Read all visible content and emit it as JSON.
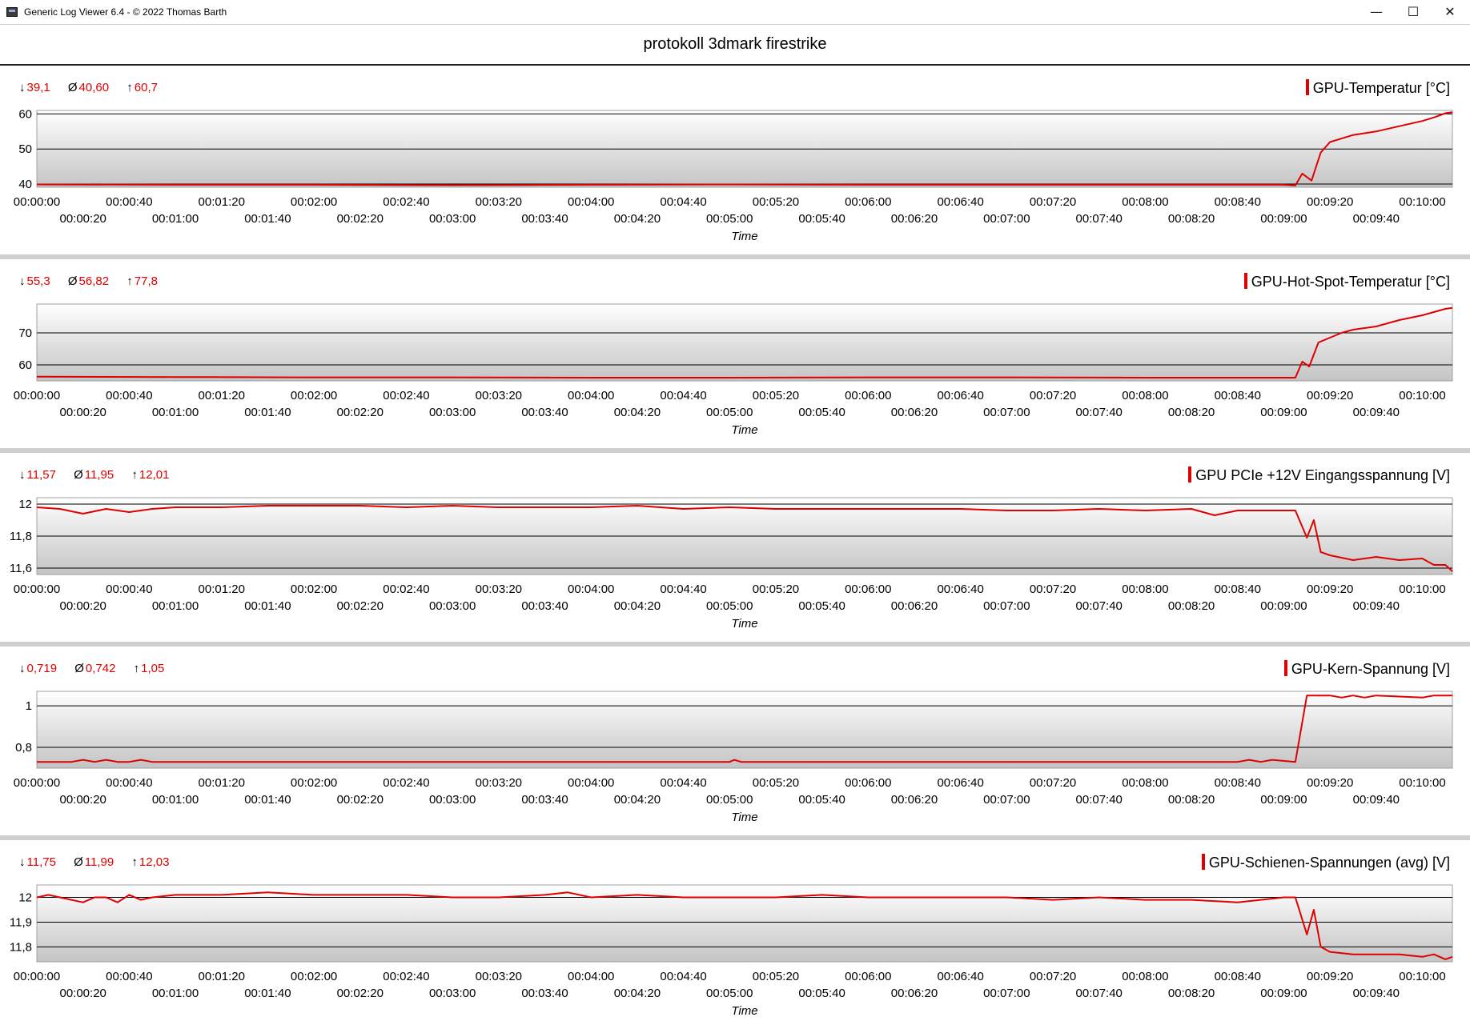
{
  "window": {
    "title": "Generic Log Viewer 6.4 - © 2022 Thomas Barth",
    "minimize_icon": "minimize-icon",
    "maximize_icon": "maximize-icon",
    "close_icon": "close-icon"
  },
  "header": {
    "title": "protokoll 3dmark firestrike"
  },
  "x_ticks_upper": [
    "00:00:00",
    "00:00:40",
    "00:01:20",
    "00:02:00",
    "00:02:40",
    "00:03:20",
    "00:04:00",
    "00:04:40",
    "00:05:20",
    "00:06:00",
    "00:06:40",
    "00:07:20",
    "00:08:00",
    "00:08:40",
    "00:09:20",
    "00:10:00"
  ],
  "x_ticks_lower": [
    "00:00:20",
    "00:01:00",
    "00:01:40",
    "00:02:20",
    "00:03:00",
    "00:03:40",
    "00:04:20",
    "00:05:00",
    "00:05:40",
    "00:06:20",
    "00:07:00",
    "00:07:40",
    "00:08:20",
    "00:09:00",
    "00:09:40"
  ],
  "x_label": "Time",
  "colors": {
    "series": "#e00000",
    "separator": "#cfcfcf"
  },
  "panels": [
    {
      "legend": "GPU-Temperatur [°C]",
      "min_sym": "↓",
      "min": "39,1",
      "avg_sym": "Ø",
      "avg": "40,60",
      "max_sym": "↑",
      "max": "60,7",
      "chart_data": {
        "type": "line",
        "ylim": [
          39.1,
          61.0
        ],
        "yticks": [
          {
            "v": 40,
            "label": "40"
          },
          {
            "v": 50,
            "label": "50"
          },
          {
            "v": 60,
            "label": "60"
          }
        ],
        "x": [
          0,
          60,
          120,
          180,
          240,
          300,
          360,
          420,
          480,
          540,
          545,
          548,
          552,
          556,
          560,
          565,
          570,
          580,
          590,
          600,
          605,
          610,
          613
        ],
        "values": [
          39.9,
          39.8,
          39.8,
          39.7,
          39.8,
          39.9,
          39.8,
          39.8,
          39.8,
          39.8,
          39.6,
          43.0,
          41.0,
          49.0,
          52.0,
          53.0,
          54.0,
          55.0,
          56.5,
          58.0,
          59.0,
          60.2,
          60.5
        ]
      }
    },
    {
      "legend": "GPU-Hot-Spot-Temperatur [°C]",
      "min_sym": "↓",
      "min": "55,3",
      "avg_sym": "Ø",
      "avg": "56,82",
      "max_sym": "↑",
      "max": "77,8",
      "chart_data": {
        "type": "line",
        "ylim": [
          55.0,
          79.0
        ],
        "yticks": [
          {
            "v": 60,
            "label": "60"
          },
          {
            "v": 70,
            "label": "70"
          }
        ],
        "x": [
          0,
          60,
          120,
          180,
          240,
          300,
          360,
          420,
          480,
          540,
          545,
          548,
          551,
          555,
          560,
          565,
          570,
          580,
          590,
          600,
          605,
          610,
          613
        ],
        "values": [
          56.3,
          56.2,
          56.1,
          56.1,
          56.0,
          56.0,
          56.1,
          56.1,
          56.0,
          56.0,
          56.0,
          61.0,
          59.5,
          67.0,
          68.5,
          70.0,
          71.0,
          72.0,
          74.0,
          75.5,
          76.5,
          77.5,
          77.8
        ]
      }
    },
    {
      "legend": "GPU PCIe +12V Eingangsspannung [V]",
      "min_sym": "↓",
      "min": "11,57",
      "avg_sym": "Ø",
      "avg": "11,95",
      "max_sym": "↑",
      "max": "12,01",
      "chart_data": {
        "type": "line",
        "ylim": [
          11.56,
          12.04
        ],
        "yticks": [
          {
            "v": 11.6,
            "label": "11,6"
          },
          {
            "v": 11.8,
            "label": "11,8"
          },
          {
            "v": 12.0,
            "label": "12"
          }
        ],
        "x": [
          0,
          10,
          20,
          30,
          40,
          50,
          60,
          80,
          100,
          120,
          140,
          160,
          180,
          200,
          220,
          240,
          260,
          280,
          300,
          320,
          340,
          360,
          380,
          400,
          420,
          440,
          460,
          480,
          500,
          510,
          520,
          530,
          540,
          545,
          550,
          553,
          556,
          560,
          570,
          580,
          590,
          600,
          605,
          610,
          613
        ],
        "values": [
          11.98,
          11.97,
          11.94,
          11.97,
          11.95,
          11.97,
          11.98,
          11.98,
          11.99,
          11.99,
          11.99,
          11.98,
          11.99,
          11.98,
          11.98,
          11.98,
          11.99,
          11.97,
          11.98,
          11.97,
          11.97,
          11.97,
          11.97,
          11.97,
          11.96,
          11.96,
          11.97,
          11.96,
          11.97,
          11.93,
          11.96,
          11.96,
          11.96,
          11.96,
          11.79,
          11.9,
          11.7,
          11.68,
          11.65,
          11.67,
          11.65,
          11.66,
          11.62,
          11.62,
          11.58
        ]
      }
    },
    {
      "legend": "GPU-Kern-Spannung [V]",
      "min_sym": "↓",
      "min": "0,719",
      "avg_sym": "Ø",
      "avg": "0,742",
      "max_sym": "↑",
      "max": "1,05",
      "chart_data": {
        "type": "line",
        "ylim": [
          0.7,
          1.07
        ],
        "yticks": [
          {
            "v": 0.8,
            "label": "0,8"
          },
          {
            "v": 1.0,
            "label": "1"
          }
        ],
        "x": [
          0,
          15,
          20,
          25,
          30,
          35,
          40,
          45,
          50,
          300,
          302,
          305,
          520,
          525,
          530,
          535,
          545,
          550,
          560,
          565,
          570,
          575,
          580,
          600,
          605,
          610,
          613
        ],
        "values": [
          0.73,
          0.73,
          0.74,
          0.73,
          0.74,
          0.73,
          0.73,
          0.74,
          0.73,
          0.73,
          0.74,
          0.73,
          0.73,
          0.74,
          0.73,
          0.74,
          0.73,
          1.05,
          1.05,
          1.04,
          1.05,
          1.04,
          1.05,
          1.04,
          1.05,
          1.05,
          1.05
        ]
      }
    },
    {
      "legend": "GPU-Schienen-Spannungen (avg) [V]",
      "min_sym": "↓",
      "min": "11,75",
      "avg_sym": "Ø",
      "avg": "11,99",
      "max_sym": "↑",
      "max": "12,03",
      "chart_data": {
        "type": "line",
        "ylim": [
          11.74,
          12.05
        ],
        "yticks": [
          {
            "v": 11.8,
            "label": "11,8"
          },
          {
            "v": 11.9,
            "label": "11,9"
          },
          {
            "v": 12.0,
            "label": "12"
          }
        ],
        "x": [
          0,
          5,
          10,
          15,
          20,
          25,
          30,
          35,
          40,
          45,
          50,
          60,
          80,
          100,
          120,
          140,
          160,
          180,
          200,
          220,
          230,
          240,
          260,
          280,
          300,
          320,
          340,
          360,
          380,
          400,
          420,
          440,
          460,
          480,
          500,
          520,
          530,
          540,
          545,
          550,
          553,
          556,
          560,
          570,
          580,
          590,
          600,
          605,
          610,
          613
        ],
        "values": [
          12.0,
          12.01,
          12.0,
          11.99,
          11.98,
          12.0,
          12.0,
          11.98,
          12.01,
          11.99,
          12.0,
          12.01,
          12.01,
          12.02,
          12.01,
          12.01,
          12.01,
          12.0,
          12.0,
          12.01,
          12.02,
          12.0,
          12.01,
          12.0,
          12.0,
          12.0,
          12.01,
          12.0,
          12.0,
          12.0,
          12.0,
          11.99,
          12.0,
          11.99,
          11.99,
          11.98,
          11.99,
          12.0,
          12.0,
          11.85,
          11.95,
          11.8,
          11.78,
          11.77,
          11.77,
          11.77,
          11.76,
          11.77,
          11.75,
          11.76
        ]
      }
    }
  ]
}
